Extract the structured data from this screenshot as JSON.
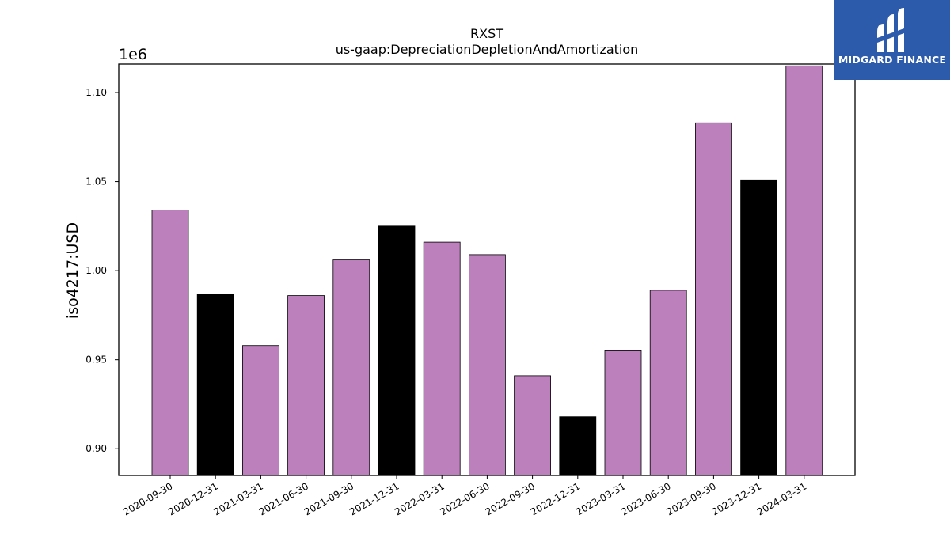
{
  "brand": {
    "name": "MIDGARD FINANCE",
    "logo_icon": "midgard-m-logo-icon",
    "background_color": "#2d5bab"
  },
  "chart_data": {
    "type": "bar",
    "title": "RXST",
    "subtitle": "us-gaap:DepreciationDepletionAndAmortization",
    "ylabel": "iso4217:USD",
    "xlabel": "",
    "y_scale_label": "1e6",
    "ylim": [
      885000,
      1116000
    ],
    "y_ticks": [
      0.9,
      0.95,
      1.0,
      1.05,
      1.1
    ],
    "y_tick_labels": [
      "0.90",
      "0.95",
      "1.00",
      "1.05",
      "1.10"
    ],
    "grid": false,
    "categories": [
      "2020-09-30",
      "2020-12-31",
      "2021-03-31",
      "2021-06-30",
      "2021-09-30",
      "2021-12-31",
      "2022-03-31",
      "2022-06-30",
      "2022-09-30",
      "2022-12-31",
      "2023-03-31",
      "2023-06-30",
      "2023-09-30",
      "2023-12-31",
      "2024-03-31"
    ],
    "values": [
      1034000,
      987000,
      958000,
      986000,
      1006000,
      1025000,
      1016000,
      1009000,
      941000,
      918000,
      955000,
      989000,
      1083000,
      1051000,
      1115000
    ],
    "bar_colors": [
      "#bc80bd",
      "#000000",
      "#bc80bd",
      "#bc80bd",
      "#bc80bd",
      "#000000",
      "#bc80bd",
      "#bc80bd",
      "#bc80bd",
      "#000000",
      "#bc80bd",
      "#bc80bd",
      "#bc80bd",
      "#000000",
      "#bc80bd"
    ]
  }
}
